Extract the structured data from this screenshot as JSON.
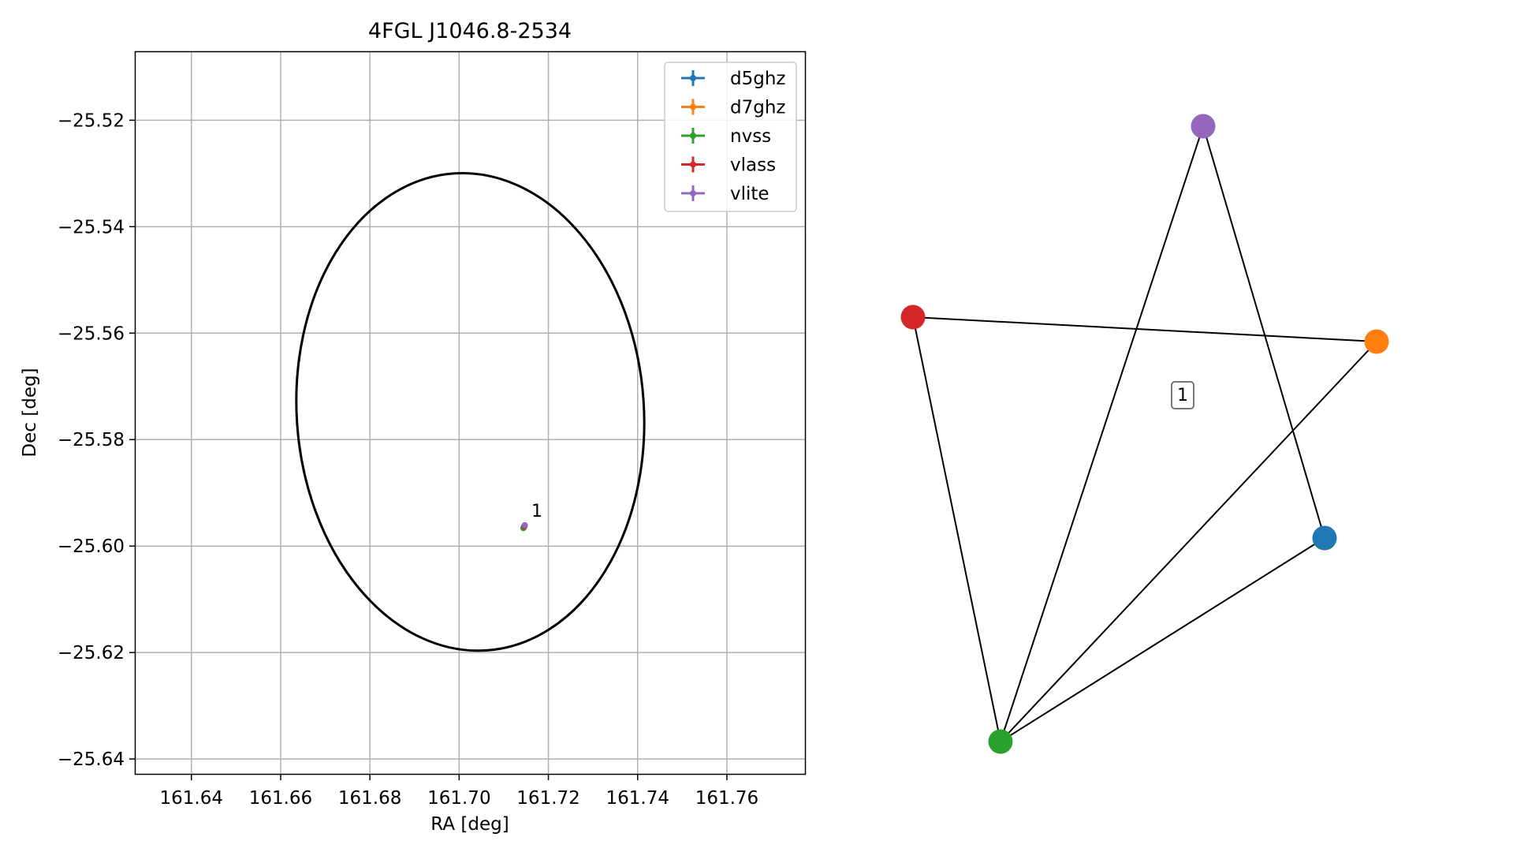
{
  "chart_data": [
    {
      "type": "scatter",
      "title": "4FGL J1046.8-2534",
      "xlabel": "RA [deg]",
      "ylabel": "Dec [deg]",
      "xlim": [
        161.6275,
        161.7775
      ],
      "ylim": [
        -25.6428,
        -25.5072
      ],
      "xticks": [
        161.64,
        161.66,
        161.68,
        161.7,
        161.72,
        161.74,
        161.76
      ],
      "xtick_labels": [
        "161.64",
        "161.66",
        "161.68",
        "161.70",
        "161.72",
        "161.74",
        "161.76"
      ],
      "yticks": [
        -25.52,
        -25.54,
        -25.56,
        -25.58,
        -25.6,
        -25.62,
        -25.64
      ],
      "ytick_labels": [
        "−25.52",
        "−25.54",
        "−25.56",
        "−25.58",
        "−25.60",
        "−25.62",
        "−25.64"
      ],
      "grid": true,
      "legend_position": "top-right",
      "ellipse": {
        "center": [
          161.7025,
          -25.5748
        ],
        "semi_axis_ra": 0.0389,
        "semi_axis_dec": 0.0449,
        "rotation_deg": -4,
        "color": "#000000"
      },
      "series": [
        {
          "name": "d5ghz",
          "color": "#1f77b4",
          "points": [
            {
              "x": 161.7146,
              "y": -25.5963
            }
          ]
        },
        {
          "name": "d7ghz",
          "color": "#ff7f0e",
          "points": [
            {
              "x": 161.7146,
              "y": -25.5963
            }
          ]
        },
        {
          "name": "nvss",
          "color": "#2ca02c",
          "points": [
            {
              "x": 161.7144,
              "y": -25.5966
            }
          ]
        },
        {
          "name": "vlass",
          "color": "#d62728",
          "points": [
            {
              "x": 161.7146,
              "y": -25.5963
            }
          ]
        },
        {
          "name": "vlite",
          "color": "#9467bd",
          "points": [
            {
              "x": 161.7147,
              "y": -25.5961
            }
          ]
        }
      ],
      "annotations": [
        {
          "text": "1",
          "x": 161.7162,
          "y": -25.5945
        }
      ]
    },
    {
      "type": "network",
      "group_label": "1",
      "nodes": [
        {
          "id": "d5ghz",
          "color": "#1f77b4"
        },
        {
          "id": "d7ghz",
          "color": "#ff7f0e"
        },
        {
          "id": "nvss",
          "color": "#2ca02c"
        },
        {
          "id": "vlass",
          "color": "#d62728"
        },
        {
          "id": "vlite",
          "color": "#9467bd"
        }
      ],
      "edges": [
        [
          "vlass",
          "d7ghz"
        ],
        [
          "vlass",
          "nvss"
        ],
        [
          "vlite",
          "nvss"
        ],
        [
          "vlite",
          "d5ghz"
        ],
        [
          "d7ghz",
          "nvss"
        ],
        [
          "d5ghz",
          "nvss"
        ]
      ]
    }
  ]
}
